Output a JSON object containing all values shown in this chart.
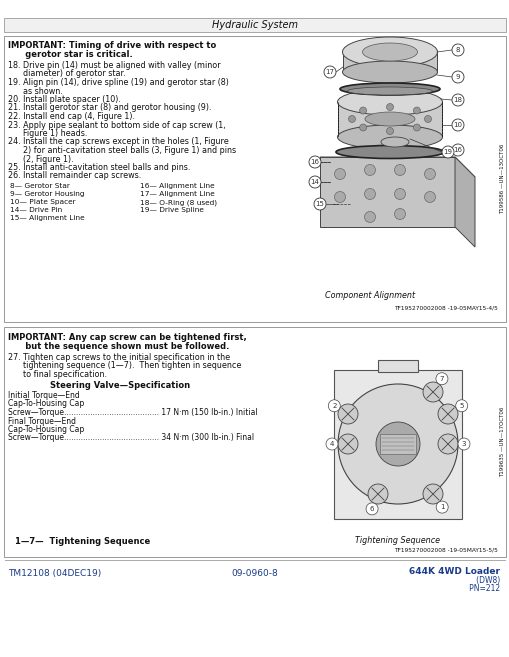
{
  "page_bg": "#ffffff",
  "header_bg": "#eeeeee",
  "header_text": "Hydraulic System",
  "box1_important": "IMPORTANT: Timing of drive with respect to",
  "box1_important2": "      gerotor star is critical.",
  "box1_steps": [
    "18. Drive pin (14) must be aligned with valley (minor",
    "      diameter) of gerotor star.",
    "19. Align pin (14), drive spline (19) and gerotor star (8)",
    "      as shown.",
    "20. Install plate spacer (10).",
    "21. Install gerotor star (8) and gerotor housing (9).",
    "22. Install end cap (4, Figure 1).",
    "23. Apply pipe sealant to bottom side of cap screw (1,",
    "      Figure 1) heads.",
    "24. Install the cap screws except in the holes (1, Figure",
    "      2) for anti-cavitation steel balls (3, Figure 1) and pins",
    "      (2, Figure 1).",
    "25. Install anti-cavitation steel balls and pins.",
    "26. Install remainder cap screws."
  ],
  "box1_legend_col1": [
    "8— Gerotor Star",
    "9— Gerotor Housing",
    "10— Plate Spacer",
    "14— Drive Pin",
    "15— Alignment Line"
  ],
  "box1_legend_col2": [
    "16— Alignment Line",
    "17— Alignment Line",
    "18— O-Ring (8 used)",
    "19— Drive Spline"
  ],
  "box1_caption": "Component Alignment",
  "box1_ref": "TF195270002008 -19-05MAY15-4/5",
  "box1_vert": "T199586 —UN—13OCT06",
  "box2_important": "IMPORTANT: Any cap screw can be tightened first,",
  "box2_important2": "      but the sequence shown must be followed.",
  "box2_step27a": "27. Tighten cap screws to the initial specification in the",
  "box2_step27b": "      tightening sequence (1—7).  Then tighten in sequence",
  "box2_step27c": "      to final specification.",
  "box2_spec_title": "Steering Valve—Specification",
  "box2_spec": [
    "Initial Torque—End",
    "Cap-To-Housing Cap",
    "Screw—Torque........................................ 17 N·m (150 lb-in.) Initial",
    "Final Torque—End",
    "Cap-To-Housing Cap",
    "Screw—Torque........................................ 34 N·m (300 lb-in.) Final"
  ],
  "box2_footer": "1—7—  Tightening Sequence",
  "box2_caption": "Tightening Sequence",
  "box2_ref": "TF195270002008 -19-05MAY15-5/5",
  "box2_vert": "T199635 —UN—17OCT06",
  "footer_left": "TM12108 (04DEC19)",
  "footer_center": "09-0960-8",
  "footer_right1": "644K 4WD Loader",
  "footer_right2": "                           (DW8)",
  "footer_right3": "                           PN=212",
  "tc": "#111111",
  "bc": "#888888",
  "blue": "#1a3a8a"
}
